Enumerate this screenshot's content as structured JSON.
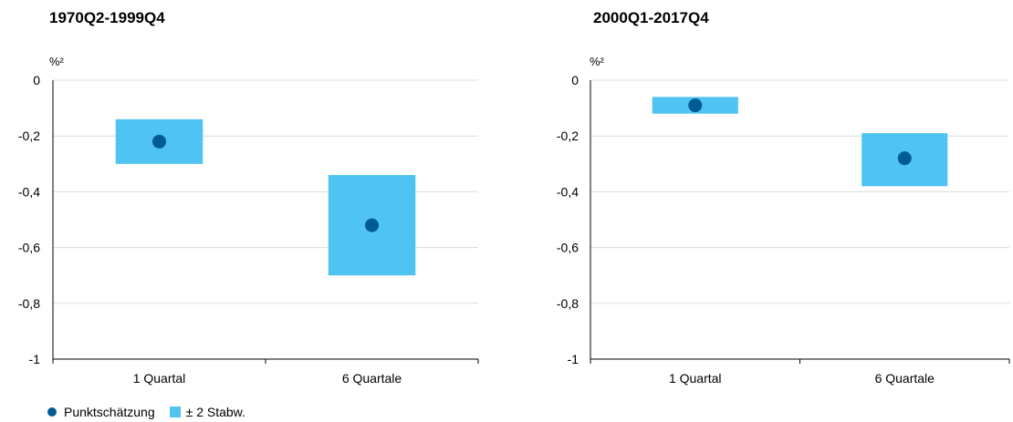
{
  "colors": {
    "point": "#005a94",
    "band": "#4fc3f1",
    "grid": "#dcdcdc",
    "axis": "#000000"
  },
  "legend": {
    "point_label": "Punktschätzung",
    "band_label": "± 2 Stabw."
  },
  "chart_data": [
    {
      "type": "scatter",
      "title": "1970Q2-1999Q4",
      "unit": "%²",
      "categories": [
        "1 Quartal",
        "6 Quartale"
      ],
      "ylim": [
        -1,
        0
      ],
      "yticks": [
        0,
        -0.2,
        -0.4,
        -0.6,
        -0.8,
        -1
      ],
      "ytick_labels": [
        "0",
        "-0,2",
        "-0,4",
        "-0,6",
        "-0,8",
        "-1"
      ],
      "grid": true,
      "series": [
        {
          "name": "Punktschätzung",
          "values": [
            -0.22,
            -0.52
          ]
        },
        {
          "name": "± 2 Stabw.",
          "low": [
            -0.3,
            -0.7
          ],
          "high": [
            -0.14,
            -0.34
          ]
        }
      ]
    },
    {
      "type": "scatter",
      "title": "2000Q1-2017Q4",
      "unit": "%²",
      "categories": [
        "1 Quartal",
        "6 Quartale"
      ],
      "ylim": [
        -1,
        0
      ],
      "yticks": [
        0,
        -0.2,
        -0.4,
        -0.6,
        -0.8,
        -1
      ],
      "ytick_labels": [
        "0",
        "-0,2",
        "-0,4",
        "-0,6",
        "-0,8",
        "-1"
      ],
      "grid": true,
      "series": [
        {
          "name": "Punktschätzung",
          "values": [
            -0.09,
            -0.28
          ]
        },
        {
          "name": "± 2 Stabw.",
          "low": [
            -0.12,
            -0.38
          ],
          "high": [
            -0.06,
            -0.19
          ]
        }
      ]
    }
  ]
}
